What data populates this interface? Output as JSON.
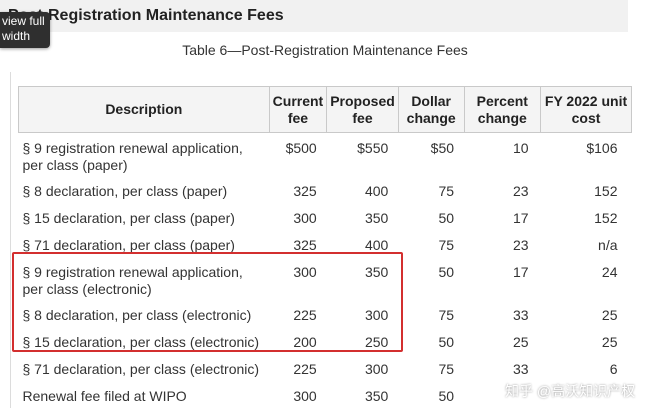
{
  "heading": {
    "text": "Post-Registration Maintenance Fees"
  },
  "tooltip": {
    "line1": "view full",
    "line2": "width"
  },
  "caption": "Table 6—Post-Registration Maintenance Fees",
  "table": {
    "headers": [
      "Description",
      "Current fee",
      "Proposed fee",
      "Dollar change",
      "Percent change",
      "FY 2022 unit cost"
    ],
    "rows": [
      {
        "desc": "§ 9 registration renewal application, per class (paper)",
        "current": "$500",
        "proposed": "$550",
        "dollar": "$50",
        "percent": "10",
        "unit": "$106"
      },
      {
        "desc": "§ 8 declaration, per class (paper)",
        "current": "325",
        "proposed": "400",
        "dollar": "75",
        "percent": "23",
        "unit": "152"
      },
      {
        "desc": "§ 15 declaration, per class (paper)",
        "current": "300",
        "proposed": "350",
        "dollar": "50",
        "percent": "17",
        "unit": "152"
      },
      {
        "desc": "§ 71 declaration, per class (paper)",
        "current": "325",
        "proposed": "400",
        "dollar": "75",
        "percent": "23",
        "unit": "n/a"
      },
      {
        "desc": "§ 9 registration renewal application, per class (electronic)",
        "current": "300",
        "proposed": "350",
        "dollar": "50",
        "percent": "17",
        "unit": "24"
      },
      {
        "desc": "§ 8 declaration, per class (electronic)",
        "current": "225",
        "proposed": "300",
        "dollar": "75",
        "percent": "33",
        "unit": "25"
      },
      {
        "desc": "§ 15 declaration, per class (electronic)",
        "current": "200",
        "proposed": "250",
        "dollar": "50",
        "percent": "25",
        "unit": "25"
      },
      {
        "desc": "§ 71 declaration, per class (electronic)",
        "current": "225",
        "proposed": "300",
        "dollar": "75",
        "percent": "33",
        "unit": "6"
      },
      {
        "desc": "Renewal fee filed at WIPO",
        "current": "300",
        "proposed": "350",
        "dollar": "50",
        "percent": "",
        "unit": ""
      }
    ]
  },
  "highlight_color": "#d32f2f",
  "watermark": "知乎 @高沃知识产权"
}
